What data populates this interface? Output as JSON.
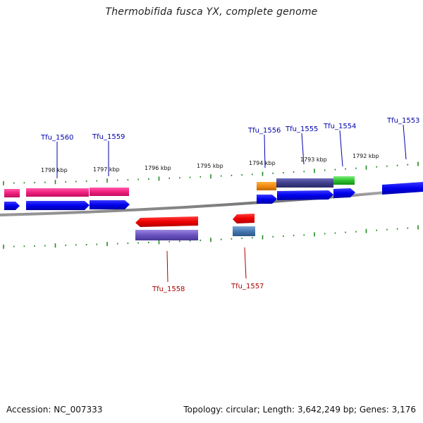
{
  "title": "Thermobifida fusca YX, complete genome",
  "footer": {
    "accession": "Accession: NC_007333",
    "summary": "Topology: circular; Length: 3,642,249 bp; Genes: 3,176"
  },
  "colors": {
    "forward_label": "#0000aa",
    "reverse_label": "#aa0000",
    "tick": "#228b22",
    "backbone": "#888888"
  },
  "scale_labels": [
    "1798 kbp",
    "1797 kbp",
    "1796 kbp",
    "1795 kbp",
    "1794 kbp",
    "1793 kbp",
    "1792 kbp"
  ],
  "forward_genes": [
    "Tfu_1560",
    "Tfu_1559",
    "Tfu_1556",
    "Tfu_1555",
    "Tfu_1554",
    "Tfu_1553"
  ],
  "reverse_genes": [
    "Tfu_1558",
    "Tfu_1557"
  ]
}
